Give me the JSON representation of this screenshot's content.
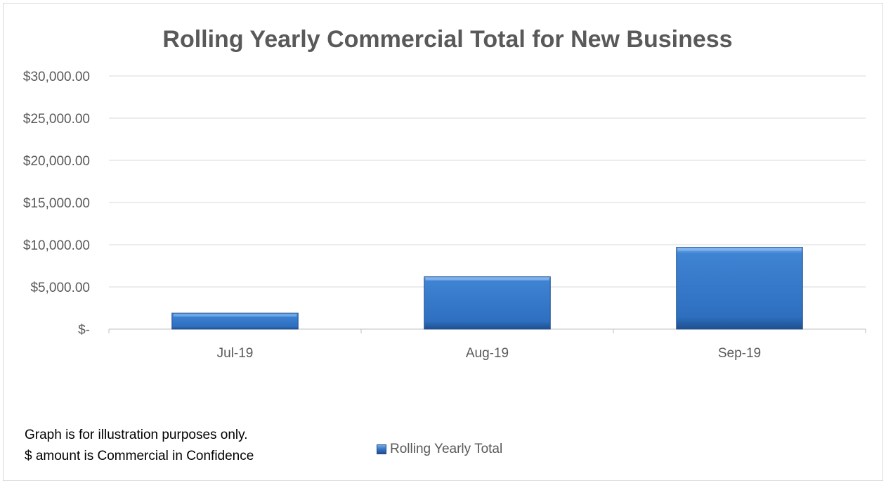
{
  "chart_data": {
    "type": "bar",
    "title": "Rolling Yearly Commercial Total for New Business",
    "categories": [
      "Jul-19",
      "Aug-19",
      "Sep-19"
    ],
    "series": [
      {
        "name": "Rolling Yearly Total",
        "values": [
          1900,
          6200,
          9700
        ]
      }
    ],
    "xlabel": "",
    "ylabel": "",
    "ylim": [
      0,
      30000
    ],
    "yticks": [
      0,
      5000,
      10000,
      15000,
      20000,
      25000,
      30000
    ],
    "ytick_labels": [
      "$-",
      "$5,000.00",
      "$10,000.00",
      "$15,000.00",
      "$20,000.00",
      "$25,000.00",
      "$30,000.00"
    ],
    "grid": true,
    "legend_position": "bottom",
    "colors": {
      "bar": "#2e6fc0",
      "bar_light": "#6fa8e8",
      "bar_dark": "#214f8c",
      "grid": "#d9d9d9",
      "text": "#595959"
    }
  },
  "notes": {
    "line1": "Graph is for illustration purposes only.",
    "line2": "$ amount is  Commercial in Confidence"
  },
  "legend": {
    "label": "Rolling Yearly Total"
  }
}
